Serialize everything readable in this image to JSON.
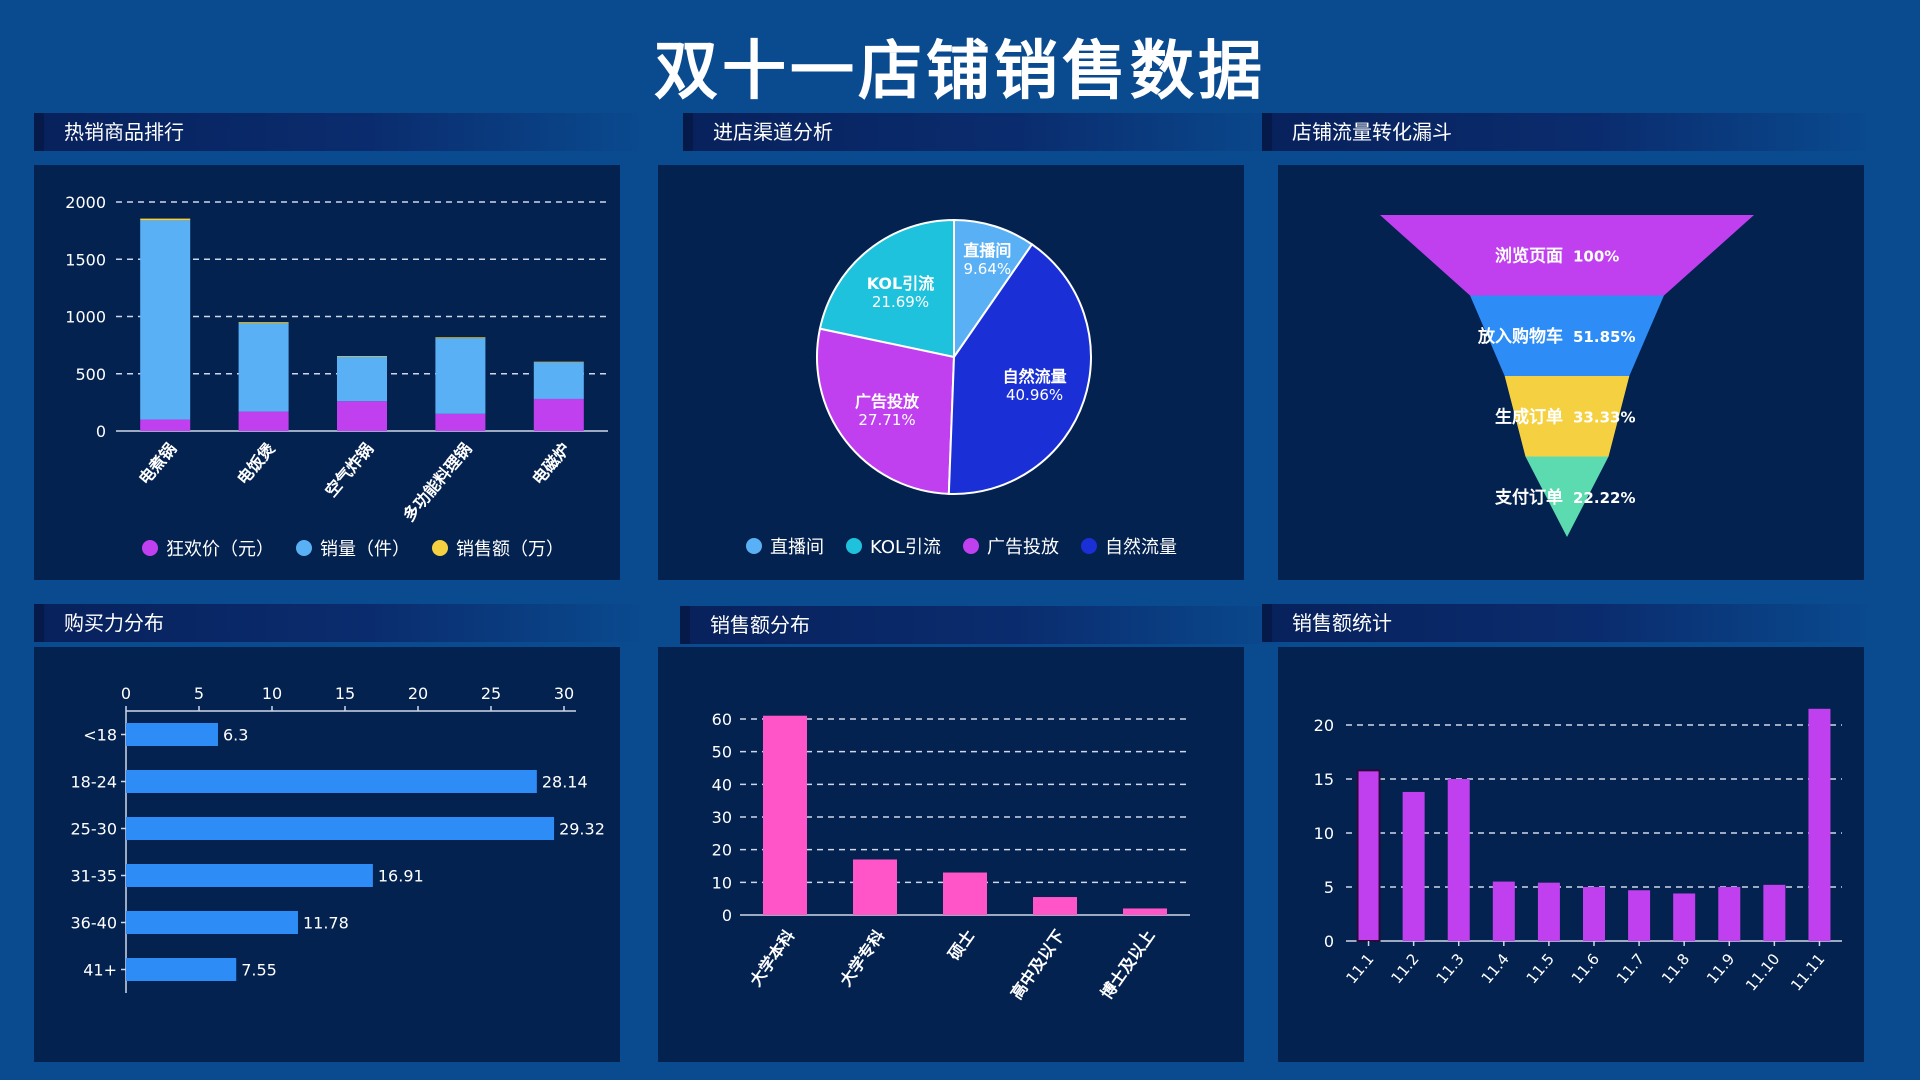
{
  "page": {
    "title": "双十一店铺销售数据"
  },
  "panels": {
    "p1": "热销商品排行",
    "p2": "进店渠道分析",
    "p3": "店铺流量转化漏斗",
    "p4": "购买力分布",
    "p5": "销售额分布",
    "p6": "销售额统计"
  },
  "colors": {
    "purple": "#c040f0",
    "blue": "#5ab0f5",
    "yellow": "#f5d142",
    "cyan": "#1fc2dc",
    "royal": "#1a2fd6",
    "pink": "#ff55c9",
    "barBlue": "#2d8cf5",
    "green": "#5cdab0"
  },
  "chart_data": [
    {
      "type": "bar",
      "stacked": true,
      "categories": [
        "电煮锅",
        "电饭煲",
        "空气炸锅",
        "多功能料理锅",
        "电磁炉"
      ],
      "series": [
        {
          "name": "狂欢价（元）",
          "values": [
            100,
            170,
            260,
            150,
            280
          ]
        },
        {
          "name": "销量（件）",
          "values": [
            1740,
            770,
            390,
            660,
            320
          ]
        },
        {
          "name": "销售额（万）",
          "values": [
            15,
            10,
            5,
            8,
            5
          ]
        }
      ],
      "yticks": [
        "0",
        "500",
        "1000",
        "1500",
        "2000"
      ],
      "ylim": [
        0,
        2000
      ],
      "legend": "bottom",
      "grid": true
    },
    {
      "type": "pie",
      "labels": [
        "直播间",
        "KOL引流",
        "广告投放",
        "自然流量"
      ],
      "values": [
        9.64,
        21.69,
        27.71,
        40.96
      ],
      "value_labels": [
        "9.64%",
        "21.69%",
        "27.71%",
        "40.96%"
      ],
      "legend": "bottom"
    },
    {
      "type": "funnel",
      "labels": [
        "浏览页面",
        "放入购物车",
        "生成订单",
        "支付订单"
      ],
      "values": [
        100,
        51.85,
        33.33,
        22.22
      ],
      "value_labels": [
        "100%",
        "51.85%",
        "33.33%",
        "22.22%"
      ]
    },
    {
      "type": "bar",
      "orientation": "horizontal",
      "categories": [
        "<18",
        "18-24",
        "25-30",
        "31-35",
        "36-40",
        "41+"
      ],
      "values": [
        6.3,
        28.14,
        29.32,
        16.91,
        11.78,
        7.55
      ],
      "value_labels": [
        "6.3",
        "28.14",
        "29.32",
        "16.91",
        "11.78",
        "7.55"
      ],
      "xticks": [
        "0",
        "5",
        "10",
        "15",
        "20",
        "25",
        "30"
      ],
      "xlim": [
        0,
        30
      ]
    },
    {
      "type": "bar",
      "categories": [
        "大学本科",
        "大学专科",
        "硕士",
        "高中及以下",
        "博士及以上"
      ],
      "values": [
        61,
        17,
        13,
        5.5,
        2
      ],
      "yticks": [
        "0",
        "10",
        "20",
        "30",
        "40",
        "50",
        "60"
      ],
      "ylim": [
        0,
        60
      ],
      "grid": true
    },
    {
      "type": "bar",
      "categories": [
        "11.1",
        "11.2",
        "11.3",
        "11.4",
        "11.5",
        "11.6",
        "11.7",
        "11.8",
        "11.9",
        "11.10",
        "11.11"
      ],
      "values": [
        15.8,
        13.8,
        15,
        5.5,
        5.4,
        5,
        4.7,
        4.4,
        5,
        5.2,
        21.5
      ],
      "yticks": [
        "0",
        "5",
        "10",
        "15",
        "20"
      ],
      "ylim": [
        0,
        20
      ],
      "grid": true
    }
  ]
}
